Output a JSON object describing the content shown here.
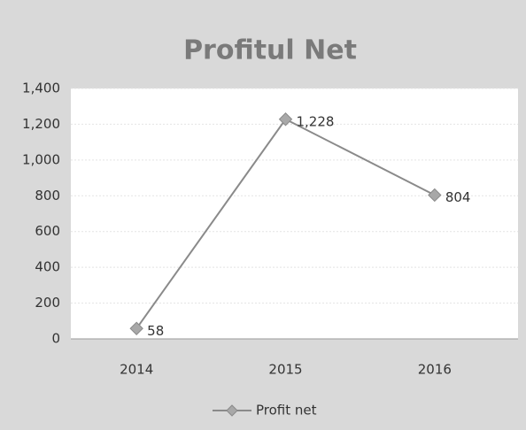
{
  "chart_data": {
    "type": "line",
    "title": "Profitul Net",
    "categories": [
      "2014",
      "2015",
      "2016"
    ],
    "series": [
      {
        "name": "Profit net",
        "color": "#8a8a8a",
        "values": [
          58,
          1228,
          804
        ],
        "value_labels": [
          "58",
          "1,228",
          "804"
        ]
      }
    ],
    "ylim": [
      0,
      1400
    ],
    "yticks": [
      0,
      200,
      400,
      600,
      800,
      {
        "value": 1000,
        "label": "1,000"
      },
      {
        "value": 1200,
        "label": "1,200"
      },
      {
        "value": 1400,
        "label": "1,400"
      }
    ],
    "grid": true,
    "legend": "bottom"
  }
}
